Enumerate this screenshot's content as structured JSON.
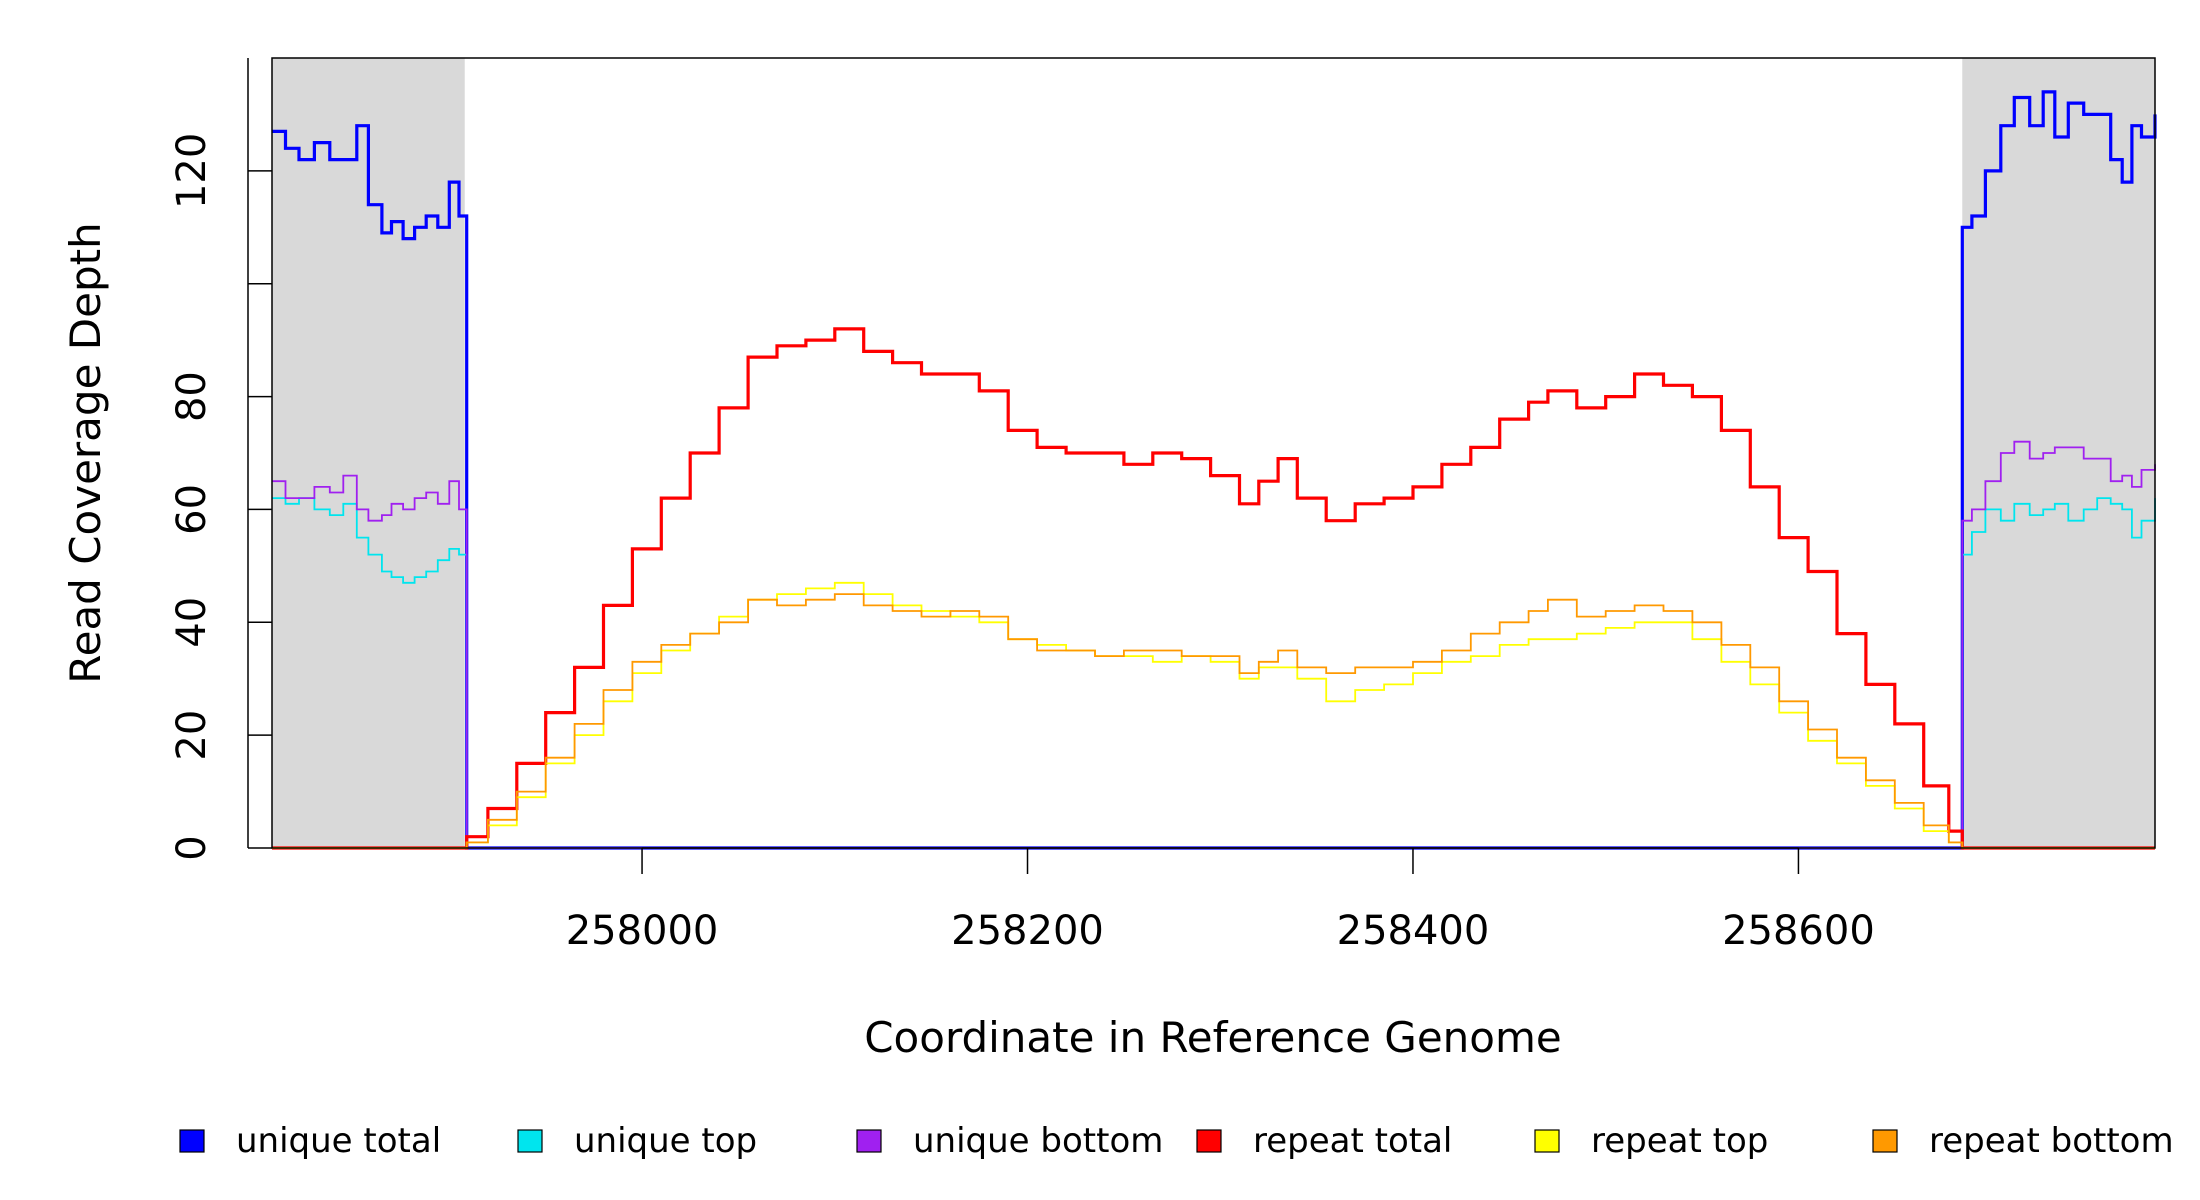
{
  "chart_data": {
    "type": "line",
    "xlabel": "Coordinate in Reference Genome",
    "ylabel": "Read Coverage Depth",
    "xlim": [
      257808,
      258785
    ],
    "ylim": [
      0,
      140
    ],
    "x_ticks": [
      258000,
      258200,
      258400,
      258600
    ],
    "y_ticks": [
      0,
      20,
      40,
      60,
      80,
      100,
      120
    ],
    "y_tick_labels": [
      "0",
      "20",
      "40",
      "60",
      "80",
      "",
      "120"
    ],
    "shaded_regions": [
      {
        "x": [
          257808,
          257908
        ],
        "color": "#d9d9d9"
      },
      {
        "x": [
          258685,
          258785
        ],
        "color": "#d9d9d9"
      }
    ],
    "grid": false,
    "legend_position": "bottom",
    "series": [
      {
        "name": "unique total",
        "color": "#0000ff",
        "x": [
          257808,
          257815,
          257822,
          257830,
          257838,
          257845,
          257852,
          257858,
          257865,
          257870,
          257876,
          257882,
          257888,
          257894,
          257900,
          257905,
          257908,
          257909,
          258684,
          258685,
          258690,
          258697,
          258705,
          258712,
          258720,
          258727,
          258733,
          258740,
          258748,
          258755,
          258762,
          258768,
          258773,
          258778,
          258785
        ],
        "y": [
          127,
          124,
          122,
          125,
          122,
          122,
          128,
          114,
          109,
          111,
          108,
          110,
          112,
          110,
          118,
          112,
          112,
          0,
          0,
          110,
          112,
          120,
          128,
          133,
          128,
          134,
          126,
          132,
          130,
          130,
          122,
          118,
          128,
          126,
          130
        ]
      },
      {
        "name": "unique top",
        "color": "#00e5ee",
        "x": [
          257808,
          257815,
          257822,
          257830,
          257838,
          257845,
          257852,
          257858,
          257865,
          257870,
          257876,
          257882,
          257888,
          257894,
          257900,
          257905,
          257908,
          257909,
          258684,
          258685,
          258690,
          258697,
          258705,
          258712,
          258720,
          258727,
          258733,
          258740,
          258748,
          258755,
          258762,
          258768,
          258773,
          258778,
          258785
        ],
        "y": [
          62,
          61,
          62,
          60,
          59,
          61,
          55,
          52,
          49,
          48,
          47,
          48,
          49,
          51,
          53,
          52,
          52,
          0,
          0,
          52,
          56,
          60,
          58,
          61,
          59,
          60,
          61,
          58,
          60,
          62,
          61,
          60,
          55,
          58,
          62
        ]
      },
      {
        "name": "unique bottom",
        "color": "#a020f0",
        "x": [
          257808,
          257815,
          257822,
          257830,
          257838,
          257845,
          257852,
          257858,
          257865,
          257870,
          257876,
          257882,
          257888,
          257894,
          257900,
          257905,
          257908,
          257909,
          258684,
          258685,
          258690,
          258697,
          258705,
          258712,
          258720,
          258727,
          258733,
          258740,
          258748,
          258755,
          258762,
          258768,
          258773,
          258778,
          258785
        ],
        "y": [
          65,
          62,
          62,
          64,
          63,
          66,
          60,
          58,
          59,
          61,
          60,
          62,
          63,
          61,
          65,
          60,
          60,
          0,
          0,
          58,
          60,
          65,
          70,
          72,
          69,
          70,
          71,
          71,
          69,
          69,
          65,
          66,
          64,
          67,
          68
        ]
      },
      {
        "name": "repeat total",
        "color": "#ff0000",
        "x": [
          257808,
          257908,
          257909,
          257920,
          257935,
          257950,
          257965,
          257980,
          257995,
          258010,
          258025,
          258040,
          258055,
          258070,
          258085,
          258100,
          258115,
          258130,
          258145,
          258160,
          258175,
          258190,
          258205,
          258220,
          258235,
          258250,
          258265,
          258280,
          258295,
          258310,
          258320,
          258330,
          258340,
          258355,
          258370,
          258385,
          258400,
          258415,
          258430,
          258445,
          258460,
          258470,
          258485,
          258500,
          258515,
          258530,
          258545,
          258560,
          258575,
          258590,
          258605,
          258620,
          258635,
          258650,
          258665,
          258678,
          258685,
          258785
        ],
        "y": [
          0,
          0,
          2,
          7,
          15,
          24,
          32,
          43,
          53,
          62,
          70,
          78,
          87,
          89,
          90,
          92,
          88,
          86,
          84,
          84,
          81,
          74,
          71,
          70,
          70,
          68,
          70,
          69,
          66,
          61,
          65,
          69,
          62,
          58,
          61,
          62,
          64,
          68,
          71,
          76,
          79,
          81,
          78,
          80,
          84,
          82,
          80,
          74,
          64,
          55,
          49,
          38,
          29,
          22,
          11,
          3,
          0,
          0
        ]
      },
      {
        "name": "repeat top",
        "color": "#ffff00",
        "x": [
          257808,
          257908,
          257909,
          257920,
          257935,
          257950,
          257965,
          257980,
          257995,
          258010,
          258025,
          258040,
          258055,
          258070,
          258085,
          258100,
          258115,
          258130,
          258145,
          258160,
          258175,
          258190,
          258205,
          258220,
          258235,
          258250,
          258265,
          258280,
          258295,
          258310,
          258320,
          258330,
          258340,
          258355,
          258370,
          258385,
          258400,
          258415,
          258430,
          258445,
          258460,
          258470,
          258485,
          258500,
          258515,
          258530,
          258545,
          258560,
          258575,
          258590,
          258605,
          258620,
          258635,
          258650,
          258665,
          258678,
          258685,
          258785
        ],
        "y": [
          0,
          0,
          1,
          4,
          9,
          15,
          20,
          26,
          31,
          35,
          38,
          41,
          44,
          45,
          46,
          47,
          45,
          43,
          42,
          41,
          40,
          37,
          36,
          35,
          34,
          34,
          33,
          34,
          33,
          30,
          32,
          32,
          30,
          26,
          28,
          29,
          31,
          33,
          34,
          36,
          37,
          37,
          38,
          39,
          40,
          40,
          37,
          33,
          29,
          24,
          19,
          15,
          11,
          7,
          3,
          1,
          0,
          0
        ]
      },
      {
        "name": "repeat bottom",
        "color": "#ff9900",
        "x": [
          257808,
          257908,
          257909,
          257920,
          257935,
          257950,
          257965,
          257980,
          257995,
          258010,
          258025,
          258040,
          258055,
          258070,
          258085,
          258100,
          258115,
          258130,
          258145,
          258160,
          258175,
          258190,
          258205,
          258220,
          258235,
          258250,
          258265,
          258280,
          258295,
          258310,
          258320,
          258330,
          258340,
          258355,
          258370,
          258385,
          258400,
          258415,
          258430,
          258445,
          258460,
          258470,
          258485,
          258500,
          258515,
          258530,
          258545,
          258560,
          258575,
          258590,
          258605,
          258620,
          258635,
          258650,
          258665,
          258678,
          258685,
          258785
        ],
        "y": [
          0,
          0,
          1,
          5,
          10,
          16,
          22,
          28,
          33,
          36,
          38,
          40,
          44,
          43,
          44,
          45,
          43,
          42,
          41,
          42,
          41,
          37,
          35,
          35,
          34,
          35,
          35,
          34,
          34,
          31,
          33,
          35,
          32,
          31,
          32,
          32,
          33,
          35,
          38,
          40,
          42,
          44,
          41,
          42,
          43,
          42,
          40,
          36,
          32,
          26,
          21,
          16,
          12,
          8,
          4,
          1,
          0,
          0
        ]
      }
    ]
  }
}
